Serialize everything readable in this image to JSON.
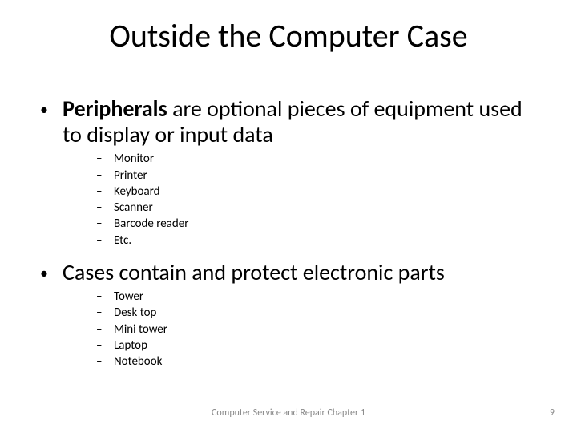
{
  "title": "Outside the Computer Case",
  "bullets": [
    {
      "bold_lead": "Peripherals",
      "rest": " are optional pieces of equipment used to display or input data",
      "subs": [
        "Monitor",
        "Printer",
        "Keyboard",
        "Scanner",
        "Barcode reader",
        "Etc."
      ]
    },
    {
      "bold_lead": "",
      "rest": "Cases contain and protect electronic parts",
      "subs": [
        "Tower",
        "Desk top",
        "Mini tower",
        "Laptop",
        "Notebook"
      ]
    }
  ],
  "footer": "Computer Service and Repair Chapter 1",
  "page_number": "9",
  "style": {
    "background_color": "#ffffff",
    "title_fontsize": 40,
    "body_fontsize": 28,
    "sub_fontsize": 15,
    "footer_fontsize": 12,
    "text_color": "#000000",
    "footer_color": "#8a8a8a",
    "l1_marker": "•",
    "l2_marker": "–"
  }
}
